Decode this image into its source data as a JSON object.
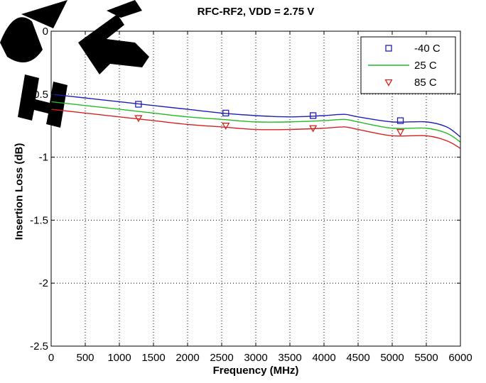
{
  "chart_data": {
    "type": "line",
    "title": "RFC-RF2, VDD = 2.75 V",
    "xlabel": "Frequency (MHz)",
    "ylabel": "Insertion Loss (dB)",
    "xlim": [
      0,
      6000
    ],
    "ylim": [
      -2.5,
      0
    ],
    "xticks": [
      0,
      500,
      1000,
      1500,
      2000,
      2500,
      3000,
      3500,
      4000,
      4500,
      5000,
      5500,
      6000
    ],
    "yticks": [
      -2.5,
      -2,
      -1.5,
      -1,
      -0.5,
      0
    ],
    "xtick_labels": [
      "0",
      "500",
      "1000",
      "1500",
      "2000",
      "2500",
      "3000",
      "3500",
      "4000",
      "4500",
      "5000",
      "5500",
      "6000"
    ],
    "ytick_labels": [
      "-2.5",
      "-2",
      "-1.5",
      "-1",
      "-0.5",
      "0"
    ],
    "grid": true,
    "legend": "top-right",
    "series": [
      {
        "name": "-40 C",
        "color": "#1f1fb4",
        "marker": "square",
        "x": [
          0,
          500,
          1000,
          1500,
          2000,
          2500,
          3000,
          3500,
          4000,
          4300,
          4500,
          5000,
          5500,
          5800,
          6000
        ],
        "values": [
          -0.5,
          -0.53,
          -0.56,
          -0.59,
          -0.62,
          -0.65,
          -0.67,
          -0.68,
          -0.67,
          -0.66,
          -0.68,
          -0.72,
          -0.72,
          -0.76,
          -0.84
        ],
        "marker_x": [
          1280,
          2560,
          3840,
          5120
        ],
        "marker_values": [
          -0.58,
          -0.65,
          -0.67,
          -0.71
        ]
      },
      {
        "name": "25 C",
        "color": "#22bb22",
        "marker": "none",
        "x": [
          0,
          500,
          1000,
          1500,
          2000,
          2500,
          3000,
          3500,
          4000,
          4300,
          4500,
          5000,
          5500,
          5800,
          6000
        ],
        "values": [
          -0.56,
          -0.59,
          -0.62,
          -0.65,
          -0.68,
          -0.7,
          -0.72,
          -0.72,
          -0.71,
          -0.7,
          -0.72,
          -0.77,
          -0.77,
          -0.81,
          -0.88
        ]
      },
      {
        "name": "85 C",
        "color": "#d42222",
        "marker": "triangle-down",
        "x": [
          0,
          500,
          1000,
          1500,
          2000,
          2500,
          3000,
          3500,
          4000,
          4300,
          4500,
          5000,
          5500,
          5800,
          6000
        ],
        "values": [
          -0.62,
          -0.65,
          -0.68,
          -0.71,
          -0.74,
          -0.76,
          -0.78,
          -0.78,
          -0.77,
          -0.76,
          -0.78,
          -0.83,
          -0.83,
          -0.87,
          -0.93
        ],
        "marker_x": [
          1280,
          2560,
          3840,
          5120
        ],
        "marker_values": [
          -0.69,
          -0.75,
          -0.77,
          -0.8
        ]
      }
    ]
  }
}
